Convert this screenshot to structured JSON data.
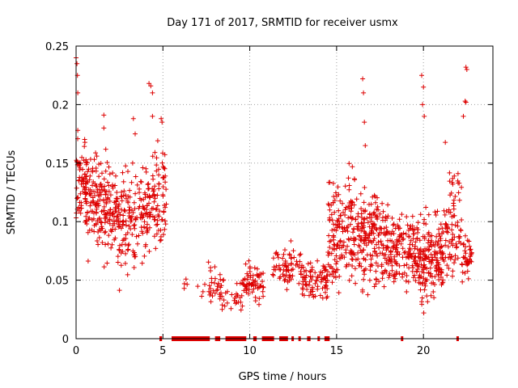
{
  "chart_data": {
    "type": "scatter",
    "title": "Day 171 of 2017, SRMTID for receiver usmx",
    "xlabel": "GPS time / hours",
    "ylabel": "SRMTID / TECUs",
    "xlim": [
      0,
      24
    ],
    "ylim": [
      0,
      0.25
    ],
    "xticks": [
      0,
      5,
      10,
      15,
      20
    ],
    "yticks": [
      0,
      0.05,
      0.1,
      0.15,
      0.2,
      0.25
    ],
    "xtick_labels": [
      "0",
      "5",
      "10",
      "15",
      "20"
    ],
    "ytick_labels": [
      "0",
      "0.05",
      "0.1",
      "0.15",
      "0.2",
      "0.25"
    ],
    "grid": true,
    "marker": "+",
    "color": "#dd0000",
    "series": [
      {
        "name": "SRMTID",
        "description": "dense scatter of SRMTID values; points at 0 indicate zero values",
        "clusters": [
          {
            "x_range": [
              0.0,
              0.6
            ],
            "y_center": 0.13,
            "y_spread": 0.03,
            "n": 60
          },
          {
            "x_range": [
              0.5,
              1.5
            ],
            "y_center": 0.12,
            "y_spread": 0.035,
            "n": 110
          },
          {
            "x_range": [
              1.5,
              2.4
            ],
            "y_center": 0.11,
            "y_spread": 0.035,
            "n": 90
          },
          {
            "x_range": [
              2.4,
              3.5
            ],
            "y_center": 0.1,
            "y_spread": 0.035,
            "n": 100
          },
          {
            "x_range": [
              3.5,
              4.4
            ],
            "y_center": 0.11,
            "y_spread": 0.03,
            "n": 70
          },
          {
            "x_range": [
              4.4,
              5.2
            ],
            "y_center": 0.12,
            "y_spread": 0.04,
            "n": 70
          },
          {
            "x_range": [
              6.2,
              7.8
            ],
            "y_center": 0.045,
            "y_spread": 0.01,
            "n": 8
          },
          {
            "x_range": [
              7.6,
              8.5
            ],
            "y_center": 0.045,
            "y_spread": 0.015,
            "n": 35
          },
          {
            "x_range": [
              8.5,
              9.5
            ],
            "y_center": 0.035,
            "y_spread": 0.01,
            "n": 20
          },
          {
            "x_range": [
              9.5,
              10.8
            ],
            "y_center": 0.045,
            "y_spread": 0.015,
            "n": 70
          },
          {
            "x_range": [
              11.3,
              13.0
            ],
            "y_center": 0.06,
            "y_spread": 0.015,
            "n": 70
          },
          {
            "x_range": [
              13.0,
              14.5
            ],
            "y_center": 0.05,
            "y_spread": 0.015,
            "n": 80
          },
          {
            "x_range": [
              14.5,
              16.5
            ],
            "y_center": 0.09,
            "y_spread": 0.035,
            "n": 200
          },
          {
            "x_range": [
              16.5,
              18.0
            ],
            "y_center": 0.085,
            "y_spread": 0.035,
            "n": 160
          },
          {
            "x_range": [
              18.0,
              19.8
            ],
            "y_center": 0.075,
            "y_spread": 0.025,
            "n": 160
          },
          {
            "x_range": [
              19.8,
              21.2
            ],
            "y_center": 0.07,
            "y_spread": 0.03,
            "n": 160
          },
          {
            "x_range": [
              21.2,
              22.2
            ],
            "y_center": 0.1,
            "y_spread": 0.04,
            "n": 80
          },
          {
            "x_range": [
              22.2,
              22.8
            ],
            "y_center": 0.07,
            "y_spread": 0.015,
            "n": 40
          }
        ],
        "high_points": [
          [
            0.0,
            0.24
          ],
          [
            0.05,
            0.235
          ],
          [
            0.08,
            0.225
          ],
          [
            0.1,
            0.21
          ],
          [
            0.1,
            0.178
          ],
          [
            1.6,
            0.191
          ],
          [
            1.6,
            0.18
          ],
          [
            3.3,
            0.188
          ],
          [
            3.4,
            0.175
          ],
          [
            4.2,
            0.218
          ],
          [
            4.3,
            0.216
          ],
          [
            4.4,
            0.21
          ],
          [
            4.4,
            0.19
          ],
          [
            4.9,
            0.188
          ],
          [
            4.95,
            0.185
          ],
          [
            16.5,
            0.222
          ],
          [
            16.55,
            0.21
          ],
          [
            16.6,
            0.185
          ],
          [
            16.65,
            0.165
          ],
          [
            19.9,
            0.225
          ],
          [
            20.0,
            0.215
          ],
          [
            19.95,
            0.2
          ],
          [
            20.05,
            0.19
          ],
          [
            22.45,
            0.232
          ],
          [
            22.5,
            0.23
          ],
          [
            22.4,
            0.203
          ],
          [
            22.45,
            0.202
          ],
          [
            22.3,
            0.19
          ]
        ],
        "zero_segments": [
          [
            4.8,
            4.95
          ],
          [
            5.5,
            7.7
          ],
          [
            8.0,
            8.3
          ],
          [
            8.6,
            9.8
          ],
          [
            10.2,
            10.4
          ],
          [
            10.7,
            11.4
          ],
          [
            11.7,
            12.2
          ],
          [
            12.4,
            12.5
          ],
          [
            12.8,
            12.9
          ],
          [
            13.3,
            13.5
          ],
          [
            13.9,
            14.0
          ],
          [
            14.3,
            14.6
          ],
          [
            18.7,
            18.8
          ],
          [
            21.9,
            22.0
          ]
        ]
      }
    ]
  }
}
